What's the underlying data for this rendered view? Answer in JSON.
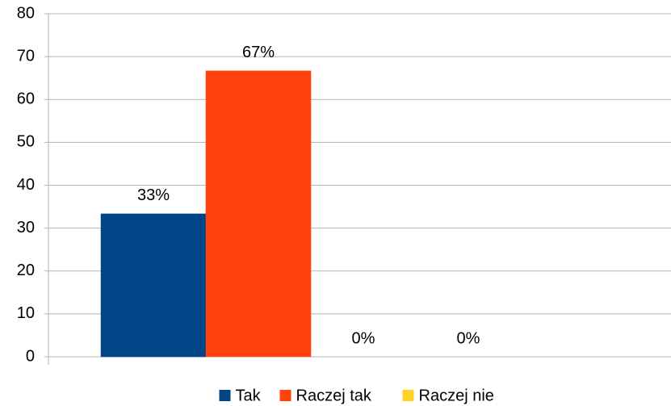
{
  "chart_data": {
    "type": "bar",
    "categories": [
      null
    ],
    "series": [
      {
        "name": "Tak",
        "color": "#004586",
        "values": [
          33.33
        ],
        "value_labels": [
          "33%"
        ]
      },
      {
        "name": "Raczej tak",
        "color": "#ff420e",
        "values": [
          66.67
        ],
        "value_labels": [
          "67%"
        ]
      },
      {
        "name": "Raczej nie",
        "color": "#ffd320",
        "values": [
          0
        ],
        "value_labels": [
          "0%"
        ]
      },
      {
        "color": "#579d1c",
        "values": [
          0
        ],
        "value_labels": [
          "0%"
        ]
      },
      {
        "color": "#7e0021",
        "values": [
          0
        ],
        "value_labels": [
          null
        ]
      }
    ],
    "ylim": [
      0,
      80
    ],
    "yticks": [
      0,
      10,
      20,
      30,
      40,
      50,
      60,
      70,
      80
    ],
    "grid": true
  }
}
